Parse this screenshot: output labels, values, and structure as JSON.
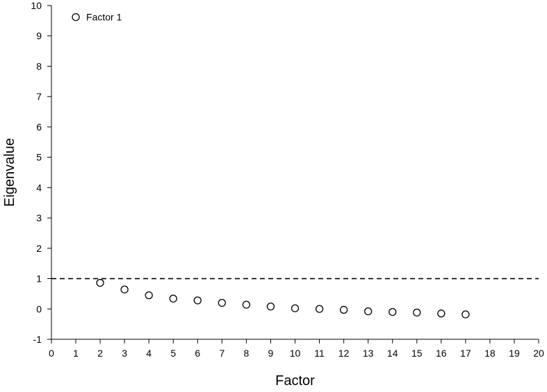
{
  "chart_data": {
    "type": "scatter",
    "title": "",
    "xlabel": "Factor",
    "ylabel": "Eigenvalue",
    "xlim": [
      0,
      20
    ],
    "ylim": [
      -1,
      10
    ],
    "xticks": [
      0,
      1,
      2,
      3,
      4,
      5,
      6,
      7,
      8,
      9,
      10,
      11,
      12,
      13,
      14,
      15,
      16,
      17,
      18,
      19,
      20
    ],
    "yticks": [
      -1,
      0,
      1,
      2,
      3,
      4,
      5,
      6,
      7,
      8,
      9,
      10
    ],
    "grid": false,
    "legend": "none",
    "series": [
      {
        "x": [
          1,
          2,
          3,
          4,
          5,
          6,
          7,
          8,
          9,
          10,
          11,
          12,
          13,
          14,
          15,
          16,
          17
        ],
        "y": [
          9.62,
          0.86,
          0.64,
          0.45,
          0.34,
          0.28,
          0.2,
          0.14,
          0.08,
          0.02,
          0.0,
          -0.03,
          -0.08,
          -0.1,
          -0.12,
          -0.15,
          -0.18
        ]
      }
    ],
    "reference_line": {
      "y": 1,
      "style": "dashed"
    },
    "annotations": [
      {
        "x": 1,
        "y": 9.62,
        "text": "Factor 1"
      }
    ]
  }
}
